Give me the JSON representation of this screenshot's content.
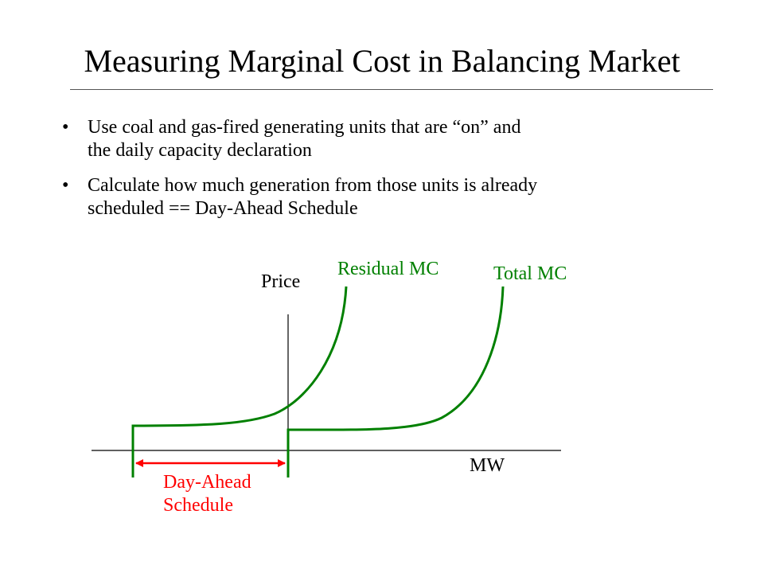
{
  "title": "Measuring Marginal Cost in Balancing Market",
  "bullets": [
    {
      "marker": "•",
      "lines": [
        "Use coal and gas-fired generating units that are “on” and",
        "the daily capacity declaration"
      ]
    },
    {
      "marker": "•",
      "lines": [
        "Calculate how much generation from those units is already",
        "scheduled == Day-Ahead Schedule"
      ]
    }
  ],
  "diagram": {
    "y_axis_label": "Price",
    "x_axis_label": "MW",
    "curves": [
      {
        "name": "Residual MC",
        "color": "#008000"
      },
      {
        "name": "Total MC",
        "color": "#008000"
      }
    ],
    "bracket": {
      "lines": [
        "Day-Ahead",
        "Schedule"
      ],
      "color": "#ff0000"
    }
  }
}
